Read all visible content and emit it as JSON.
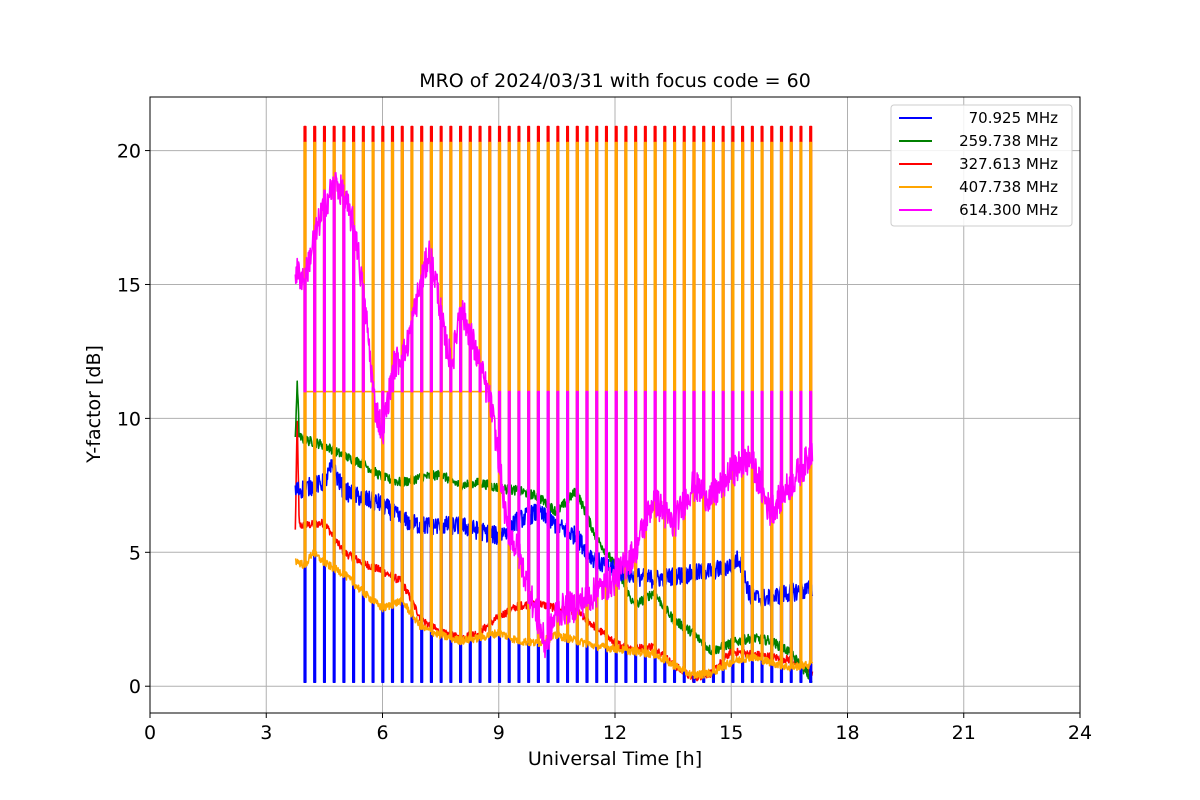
{
  "chart_data": {
    "type": "line",
    "title": "MRO of 2024/03/31 with focus code = 60",
    "xlabel": "Universal Time [h]",
    "ylabel": "Y-factor [dB]",
    "xlim": [
      0,
      24
    ],
    "ylim": [
      -1,
      22
    ],
    "xticks": [
      0,
      3,
      6,
      9,
      12,
      15,
      18,
      21,
      24
    ],
    "yticks": [
      0,
      5,
      10,
      15,
      20
    ],
    "grid": true,
    "legend_position": "top-right",
    "calibration_pulses": {
      "start": 4.0,
      "end": 17.05,
      "count": 53,
      "peak": 20.9
    },
    "series": [
      {
        "name": "70.925 MHz",
        "color": "#0000ff",
        "pulse_low": 0.15,
        "x": [
          3.75,
          4.0,
          4.5,
          4.7,
          5.0,
          5.5,
          6.0,
          6.5,
          7.0,
          7.5,
          8.0,
          8.5,
          9.0,
          9.5,
          10.0,
          10.5,
          11.0,
          11.3,
          11.5,
          12.0,
          12.5,
          13.0,
          13.5,
          14.0,
          14.5,
          15.0,
          15.2,
          15.5,
          16.0,
          16.5,
          17.0,
          17.1
        ],
        "y": [
          7.3,
          7.4,
          7.6,
          8.2,
          7.3,
          7.0,
          6.8,
          6.2,
          6.0,
          6.0,
          6.0,
          5.8,
          5.6,
          6.2,
          6.5,
          6.0,
          5.6,
          5.0,
          4.7,
          4.3,
          4.1,
          4.0,
          4.1,
          4.2,
          4.3,
          4.5,
          4.8,
          3.3,
          3.3,
          3.5,
          3.6,
          3.6
        ]
      },
      {
        "name": "259.738 MHz",
        "color": "#008000",
        "x": [
          3.75,
          3.8,
          3.85,
          4.0,
          4.5,
          5.0,
          5.5,
          6.0,
          6.5,
          7.0,
          7.5,
          8.0,
          8.5,
          9.0,
          9.5,
          10.0,
          10.5,
          11.0,
          11.5,
          12.0,
          12.5,
          13.0,
          13.5,
          14.0,
          14.5,
          15.0,
          15.5,
          16.0,
          16.5,
          17.0,
          17.1
        ],
        "y": [
          9.2,
          11.5,
          9.3,
          9.2,
          9.0,
          8.6,
          8.3,
          7.8,
          7.6,
          7.8,
          7.9,
          7.5,
          7.6,
          7.4,
          7.3,
          7.1,
          6.5,
          7.3,
          5.6,
          4.5,
          3.0,
          3.5,
          2.5,
          2.0,
          1.3,
          1.6,
          1.8,
          1.7,
          1.3,
          0.4,
          0.1
        ]
      },
      {
        "name": "327.613 MHz",
        "color": "#ff0000",
        "x": [
          3.75,
          3.8,
          3.85,
          4.0,
          4.5,
          5.0,
          5.5,
          6.0,
          6.5,
          7.0,
          7.5,
          8.0,
          8.5,
          9.0,
          9.5,
          10.0,
          10.5,
          11.0,
          11.5,
          12.0,
          12.5,
          13.0,
          13.5,
          14.0,
          14.5,
          15.0,
          15.5,
          16.0,
          16.5,
          17.0,
          17.1
        ],
        "y": [
          5.8,
          10.0,
          6.0,
          6.0,
          6.1,
          5.0,
          4.6,
          4.3,
          3.9,
          2.5,
          2.0,
          1.8,
          2.0,
          2.6,
          3.0,
          3.1,
          2.9,
          2.8,
          2.2,
          1.6,
          1.4,
          1.5,
          0.8,
          0.3,
          0.5,
          1.3,
          1.2,
          1.1,
          1.0,
          0.6,
          0.4
        ]
      },
      {
        "name": "407.738 MHz",
        "color": "#ffa500",
        "pulse_high": 20.3,
        "plateau": 11.0,
        "plateau_end": 8.7,
        "x": [
          3.75,
          4.0,
          4.2,
          4.5,
          5.0,
          5.5,
          6.0,
          6.5,
          7.0,
          7.5,
          8.0,
          8.5,
          9.0,
          9.5,
          10.0,
          10.5,
          11.0,
          11.5,
          12.0,
          12.5,
          13.0,
          13.5,
          14.0,
          14.5,
          15.0,
          15.5,
          16.0,
          16.5,
          17.0,
          17.1
        ],
        "y": [
          4.7,
          4.5,
          5.0,
          4.6,
          4.2,
          3.5,
          2.9,
          3.2,
          2.2,
          1.9,
          1.7,
          1.8,
          2.0,
          1.7,
          1.6,
          1.9,
          1.7,
          1.5,
          1.4,
          1.3,
          1.2,
          0.8,
          0.4,
          0.5,
          0.9,
          1.1,
          0.9,
          0.7,
          0.8,
          1.0
        ]
      },
      {
        "name": "614.300 MHz",
        "color": "#ff00ff",
        "pulse_low": 11.0,
        "x": [
          3.75,
          4.0,
          4.2,
          4.5,
          4.8,
          5.0,
          5.3,
          5.6,
          5.8,
          6.0,
          6.3,
          6.6,
          6.9,
          7.2,
          7.4,
          7.6,
          7.8,
          8.0,
          8.3,
          8.5,
          8.8,
          9.0,
          9.2,
          9.5,
          9.8,
          10.0,
          10.2,
          10.5,
          11.0,
          11.5,
          12.0,
          12.5,
          13.0,
          13.5,
          14.0,
          14.5,
          15.0,
          15.5,
          16.0,
          16.5,
          17.0,
          17.1
        ],
        "y": [
          15.5,
          15.2,
          16.5,
          18.0,
          18.8,
          18.3,
          17.0,
          13.5,
          10.5,
          9.5,
          12.0,
          12.5,
          14.5,
          16.2,
          15.0,
          13.0,
          12.0,
          14.2,
          13.0,
          12.0,
          10.5,
          8.5,
          6.0,
          5.0,
          3.5,
          2.5,
          1.5,
          2.8,
          3.0,
          3.5,
          4.0,
          5.0,
          7.0,
          6.0,
          7.5,
          7.0,
          8.0,
          8.5,
          6.5,
          7.5,
          8.5,
          9.0
        ]
      }
    ]
  }
}
